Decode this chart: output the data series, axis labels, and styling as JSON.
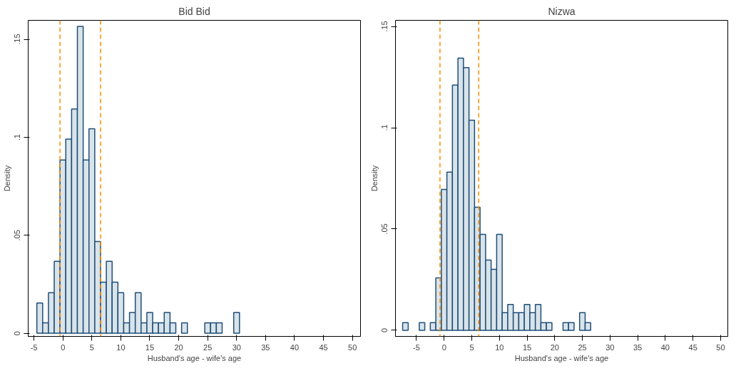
{
  "chart_data": [
    {
      "type": "histogram",
      "title": "Bid Bid",
      "xlabel": "Husband's age - wife's age",
      "ylabel": "Density",
      "color": "#d9e4ea",
      "bins": [
        -4.5,
        -3.5,
        -2.5,
        -1.5,
        -0.5,
        0.5,
        1.5,
        2.5,
        3.5,
        4.5,
        5.5,
        6.5,
        7.5,
        8.5,
        9.5,
        10.5,
        11.5,
        12.5,
        13.5,
        14.5,
        15.5,
        16.5,
        17.5,
        18.5,
        19.5,
        20.5,
        21.5,
        22.5,
        23.5,
        24.5,
        25.5,
        26.5,
        27.5,
        28.5,
        29.5,
        30.5
      ],
      "values": [
        0.0154,
        0.0053,
        0.0207,
        0.0367,
        0.0884,
        0.0991,
        0.1145,
        0.1566,
        0.0884,
        0.1044,
        0.0468,
        0.0261,
        0.0367,
        0.0261,
        0.0207,
        0.0053,
        0.0106,
        0.0207,
        0.0053,
        0.0106,
        0.0053,
        0.0053,
        0.0106,
        0.0053,
        0,
        0.0053,
        0,
        0,
        0,
        0.0053,
        0.0053,
        0.0053,
        0,
        0,
        0.0106
      ],
      "xlim": [
        -6,
        51.4
      ],
      "ylim": [
        -0.0016,
        0.1597
      ],
      "xticks": [
        -5,
        0,
        5,
        10,
        15,
        20,
        25,
        30,
        35,
        40,
        45,
        50
      ],
      "yticks": [
        0,
        {
          "value": 0.05,
          "label": ".05"
        },
        {
          "value": 0.1,
          "label": ".1"
        },
        {
          "value": 0.15,
          "label": ".15"
        }
      ],
      "ref_lines": [
        {
          "axis": "x",
          "value": -0.5,
          "color": "#ff8c00",
          "line_style": "dashed"
        },
        {
          "axis": "x",
          "value": 6.5,
          "color": "#ff8c00",
          "line_style": "dashed"
        }
      ],
      "grid": false
    },
    {
      "type": "histogram",
      "title": "Nizwa",
      "xlabel": "Husband's age - wife's age",
      "ylabel": "Density",
      "color": "#d9e4ea",
      "bins": [
        -7.5,
        -6.5,
        -5.5,
        -4.5,
        -3.5,
        -2.5,
        -1.5,
        -0.5,
        0.5,
        1.5,
        2.5,
        3.5,
        4.5,
        5.5,
        6.5,
        7.5,
        8.5,
        9.5,
        10.5,
        11.5,
        12.5,
        13.5,
        14.5,
        15.5,
        16.5,
        17.5,
        18.5,
        19.5,
        20.5,
        21.5,
        22.5,
        23.5,
        24.5,
        25.5,
        26.5
      ],
      "values": [
        0.0038,
        0,
        0,
        0.0038,
        0,
        0.0038,
        0.0259,
        0.0695,
        0.0781,
        0.121,
        0.1343,
        0.1297,
        0.1037,
        0.0607,
        0.0474,
        0.0347,
        0.0301,
        0.0474,
        0.0087,
        0.0128,
        0.0087,
        0.0087,
        0.0128,
        0.0087,
        0.0128,
        0.0038,
        0.0038,
        0,
        0,
        0.0038,
        0.0038,
        0,
        0.0087,
        0.0038
      ],
      "xlim": [
        -8.8,
        51.3
      ],
      "ylim": [
        -0.003,
        0.153
      ],
      "xticks": [
        -5,
        0,
        5,
        10,
        15,
        20,
        25,
        30,
        35,
        40,
        45,
        50
      ],
      "yticks": [
        0,
        {
          "value": 0.05,
          "label": ".05"
        },
        {
          "value": 0.1,
          "label": ".1"
        },
        {
          "value": 0.15,
          "label": ".15"
        }
      ],
      "ref_lines": [
        {
          "axis": "x",
          "value": -0.75,
          "color": "#ff8c00",
          "line_style": "dashed"
        },
        {
          "axis": "x",
          "value": 6.25,
          "color": "#ff8c00",
          "line_style": "dashed"
        }
      ],
      "grid": false
    }
  ]
}
